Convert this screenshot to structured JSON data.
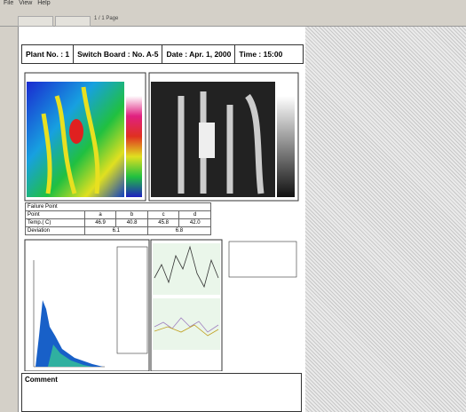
{
  "menu": [
    "File",
    "View",
    "Help"
  ],
  "toolbar": {
    "page": "1 / 1 Page"
  },
  "header": {
    "plant": "Plant No. : 1",
    "board": "Switch Board : No. A-5",
    "date": "Date : Apr. 1, 2000",
    "time": "Time : 15:00"
  },
  "failure_table": {
    "title": "Failure Point",
    "rows": [
      [
        "Point",
        "a",
        "b",
        "c",
        "d"
      ],
      [
        "Temp.( C)",
        "46.9",
        "40.8",
        "45.8",
        "42.0"
      ],
      [
        "Deviation",
        "6.1",
        "6.8"
      ]
    ]
  },
  "comment": {
    "title": "Comment"
  }
}
